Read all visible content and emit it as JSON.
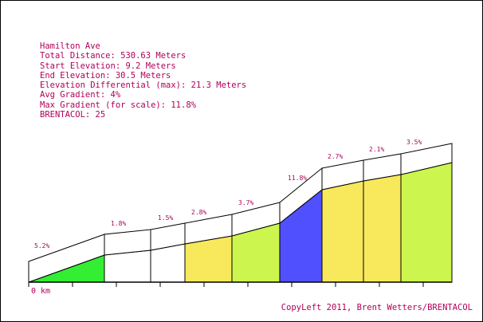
{
  "info_lines": [
    "Hamilton Ave",
    "Total Distance: 530.63 Meters",
    "Start Elevation: 9.2 Meters",
    "End Elevation: 30.5 Meters",
    "Elevation Differential (max): 21.3 Meters",
    "Avg Gradient: 4%",
    "Max Gradient (for scale): 11.8%",
    "BRENTACOL: 25"
  ],
  "copyleft": "CopyLeft 2011, Brent Wetters/BRENTACOL",
  "colors": {
    "text": "#b0005a",
    "outline": "#000000",
    "grade_0_2": "#ffffff",
    "grade_2_3": "#f7e85c",
    "grade_3_6": "#ccf54e",
    "grade_4_6": "#33ee33",
    "grade_max": "#5050ff"
  },
  "chart_data": {
    "type": "area",
    "title": "Hamilton Ave",
    "x_unit": "km",
    "x_tick_labels": [
      "0 km"
    ],
    "total_distance_m": 530.63,
    "start_elevation_m": 9.2,
    "end_elevation_m": 30.5,
    "segments": [
      {
        "gradient_label": "5.2%",
        "gradient": 5.2,
        "color": "#33ee33"
      },
      {
        "gradient_label": "1.8%",
        "gradient": 1.8,
        "color": "#ffffff"
      },
      {
        "gradient_label": "1.5%",
        "gradient": 1.5,
        "color": "#ffffff"
      },
      {
        "gradient_label": "2.8%",
        "gradient": 2.8,
        "color": "#f7e85c"
      },
      {
        "gradient_label": "3.7%",
        "gradient": 3.7,
        "color": "#ccf54e"
      },
      {
        "gradient_label": "11.8%",
        "gradient": 11.8,
        "color": "#5050ff"
      },
      {
        "gradient_label": "2.7%",
        "gradient": 2.7,
        "color": "#f7e85c"
      },
      {
        "gradient_label": "2.1%",
        "gradient": 2.1,
        "color": "#f7e85c"
      },
      {
        "gradient_label": "3.5%",
        "gradient": 3.5,
        "color": "#ccf54e"
      }
    ]
  }
}
